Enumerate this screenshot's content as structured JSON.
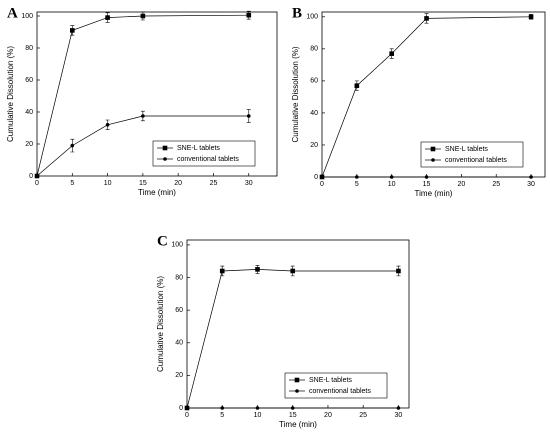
{
  "chart_data": [
    {
      "type": "line",
      "panel_label": "A",
      "xlabel": "Time (min)",
      "ylabel": "Cumulative Dissolution (%)",
      "x": [
        0,
        5,
        10,
        15,
        30
      ],
      "xlim": [
        0,
        34
      ],
      "xticks": [
        0,
        5,
        10,
        15,
        20,
        25,
        30
      ],
      "ylim": [
        0,
        102.5
      ],
      "yticks": [
        0,
        20,
        40,
        60,
        80,
        100
      ],
      "legend": "lower right",
      "series": [
        {
          "name": "SNE-L tablets",
          "color": "#000000",
          "marker": "square",
          "values": [
            0,
            91,
            99,
            100,
            100.5
          ],
          "errors": [
            null,
            3,
            3,
            2.5,
            2.5
          ]
        },
        {
          "name": "conventional tablets",
          "color": "#000000",
          "marker": "circle",
          "values": [
            0,
            19,
            32,
            37.5,
            37.5
          ],
          "errors": [
            null,
            4,
            3,
            3,
            4
          ]
        }
      ]
    },
    {
      "type": "line",
      "panel_label": "B",
      "xlabel": "Time (min)",
      "ylabel": "Cumulative Dissolution (%)",
      "x": [
        0,
        5,
        10,
        15,
        30
      ],
      "xlim": [
        0,
        32
      ],
      "xticks": [
        0,
        5,
        10,
        15,
        20,
        25,
        30
      ],
      "ylim": [
        0,
        103
      ],
      "yticks": [
        0,
        20,
        40,
        60,
        80,
        100
      ],
      "legend": "lower right",
      "series": [
        {
          "name": "SNE-L tablets",
          "color": "#000000",
          "marker": "square",
          "values": [
            0,
            57,
            77,
            99,
            100
          ],
          "errors": [
            null,
            3,
            3,
            3,
            1.5
          ]
        },
        {
          "name": "conventional tablets",
          "color": "#000000",
          "marker": "circle",
          "values": [
            0,
            0,
            0,
            0,
            0
          ],
          "errors": [
            null,
            null,
            null,
            null,
            null
          ]
        }
      ]
    },
    {
      "type": "line",
      "panel_label": "C",
      "xlabel": "Time (min)",
      "ylabel": "Cumulative Dissolution (%)",
      "x": [
        0,
        5,
        10,
        15,
        30
      ],
      "xlim": [
        0,
        31.5
      ],
      "xticks": [
        0,
        5,
        10,
        15,
        20,
        25,
        30
      ],
      "ylim": [
        0,
        103
      ],
      "yticks": [
        0,
        20,
        40,
        60,
        80,
        100
      ],
      "legend": "lower right",
      "series": [
        {
          "name": "SNE-L tablets",
          "color": "#000000",
          "marker": "square",
          "values": [
            0,
            84,
            85,
            84,
            84
          ],
          "errors": [
            null,
            3,
            2.5,
            3,
            3
          ]
        },
        {
          "name": "conventional tablets",
          "color": "#000000",
          "marker": "circle",
          "values": [
            0,
            0,
            0,
            0,
            0
          ],
          "errors": [
            null,
            null,
            null,
            null,
            null
          ]
        }
      ]
    }
  ]
}
